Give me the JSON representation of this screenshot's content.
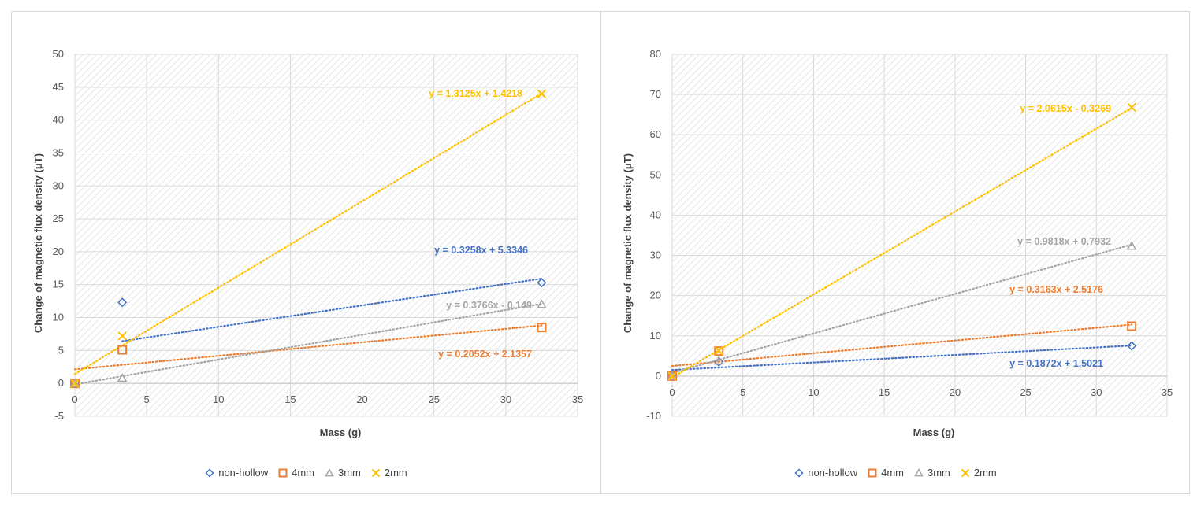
{
  "chart_data": [
    {
      "type": "scatter",
      "xlabel": "Mass (g)",
      "ylabel": "Change of magnetic flux density (μT)",
      "xlim": [
        0,
        35
      ],
      "ylim": [
        -5,
        50
      ],
      "x_ticks": [
        0,
        5,
        10,
        15,
        20,
        25,
        30,
        35
      ],
      "y_ticks": [
        -5,
        0,
        5,
        10,
        15,
        20,
        25,
        30,
        35,
        40,
        45,
        50
      ],
      "grid": true,
      "legend_position": "bottom",
      "series": [
        {
          "name": "non-hollow",
          "color": "#4472c4",
          "marker": "diamond",
          "points": [
            [
              3.3,
              12.3
            ],
            [
              32.5,
              15.3
            ]
          ],
          "trendline": {
            "slope": 0.3258,
            "intercept": 5.3346,
            "label": "y = 0.3258x + 5.3346"
          }
        },
        {
          "name": "4mm",
          "color": "#ed7d31",
          "marker": "square",
          "points": [
            [
              0,
              0
            ],
            [
              3.3,
              5.1
            ],
            [
              32.5,
              8.5
            ]
          ],
          "trendline": {
            "slope": 0.2052,
            "intercept": 2.1357,
            "label": "y = 0.2052x + 2.1357"
          }
        },
        {
          "name": "3mm",
          "color": "#a5a5a5",
          "marker": "triangle",
          "points": [
            [
              0,
              0
            ],
            [
              3.3,
              0.8
            ],
            [
              32.5,
              12.0
            ]
          ],
          "trendline": {
            "slope": 0.3766,
            "intercept": -0.149,
            "label": "y = 0.3766x - 0.149"
          }
        },
        {
          "name": "2mm",
          "color": "#ffc000",
          "marker": "x",
          "points": [
            [
              0,
              0
            ],
            [
              3.3,
              7.2
            ],
            [
              32.5,
              44.0
            ]
          ],
          "trendline": {
            "slope": 1.3125,
            "intercept": 1.4218,
            "label": "y = 1.3125x + 1.4218"
          }
        }
      ]
    },
    {
      "type": "scatter",
      "xlabel": "Mass (g)",
      "ylabel": "Change of magnetic flux density (μT)",
      "xlim": [
        0,
        35
      ],
      "ylim": [
        -10,
        80
      ],
      "x_ticks": [
        0,
        5,
        10,
        15,
        20,
        25,
        30,
        35
      ],
      "y_ticks": [
        -10,
        0,
        10,
        20,
        30,
        40,
        50,
        60,
        70,
        80
      ],
      "grid": true,
      "legend_position": "bottom",
      "series": [
        {
          "name": "non-hollow",
          "color": "#4472c4",
          "marker": "diamond",
          "points": [
            [
              0,
              0
            ],
            [
              3.3,
              3.5
            ],
            [
              32.5,
              7.5
            ]
          ],
          "trendline": {
            "slope": 0.1872,
            "intercept": 1.5021,
            "label": "y = 0.1872x + 1.5021"
          }
        },
        {
          "name": "4mm",
          "color": "#ed7d31",
          "marker": "square",
          "points": [
            [
              0,
              0
            ],
            [
              3.3,
              6.2
            ],
            [
              32.5,
              12.4
            ]
          ],
          "trendline": {
            "slope": 0.3163,
            "intercept": 2.5176,
            "label": "y = 0.3163x + 2.5176"
          }
        },
        {
          "name": "3mm",
          "color": "#a5a5a5",
          "marker": "triangle",
          "points": [
            [
              0,
              0
            ],
            [
              3.3,
              3.8
            ],
            [
              32.5,
              32.3
            ]
          ],
          "trendline": {
            "slope": 0.9818,
            "intercept": 0.7932,
            "label": "y = 0.9818x + 0.7932"
          }
        },
        {
          "name": "2mm",
          "color": "#ffc000",
          "marker": "x",
          "points": [
            [
              0,
              0
            ],
            [
              3.3,
              6.3
            ],
            [
              32.5,
              66.8
            ]
          ],
          "trendline": {
            "slope": 2.0615,
            "intercept": -0.3269,
            "label": "y = 2.0615x - 0.3269"
          }
        }
      ]
    }
  ]
}
